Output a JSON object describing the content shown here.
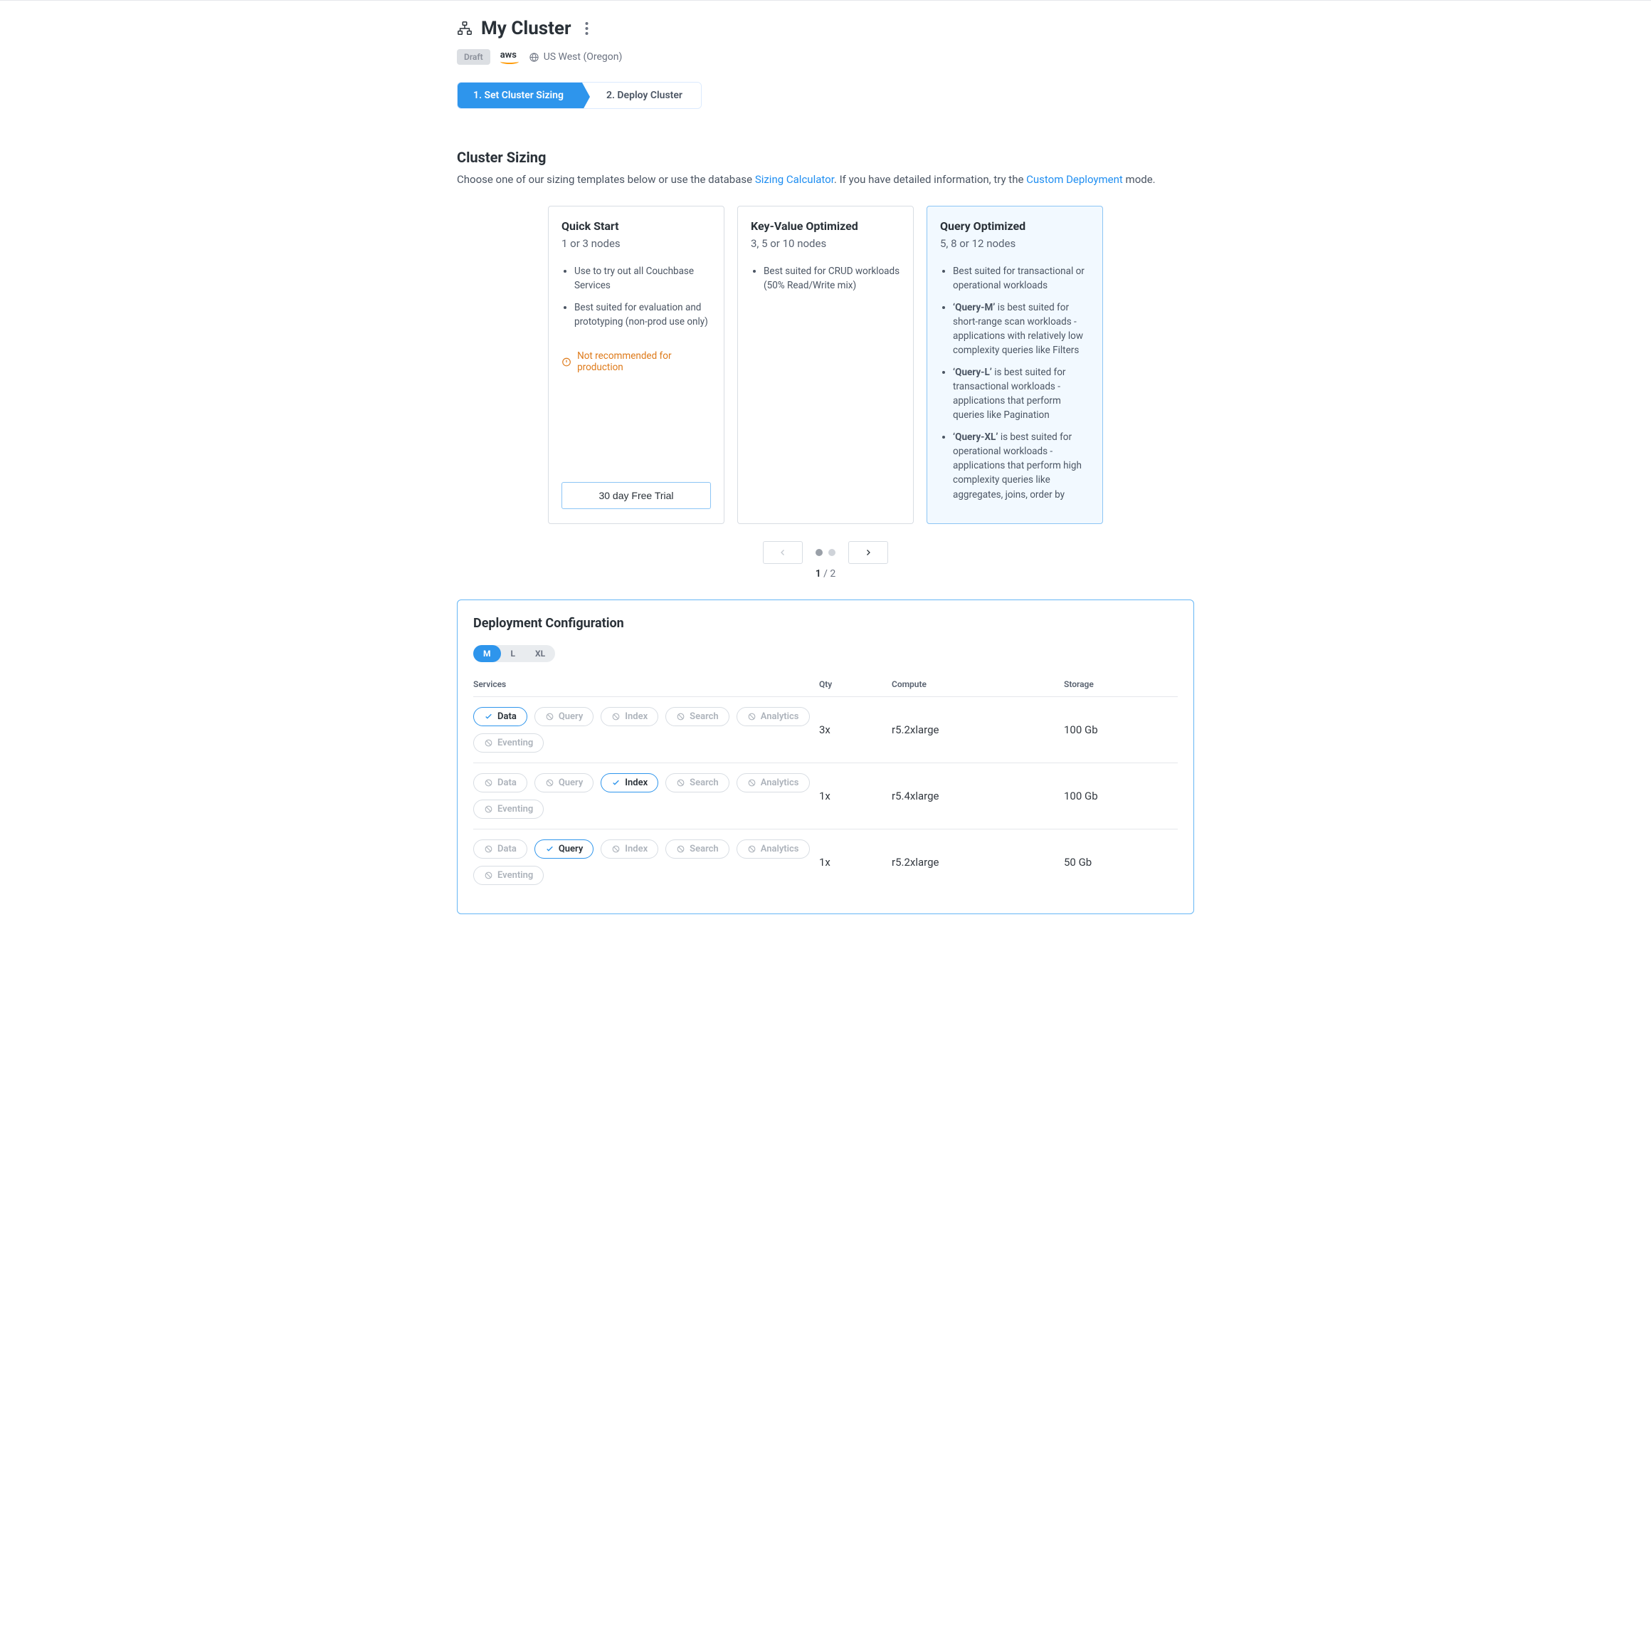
{
  "header": {
    "title": "My Cluster",
    "draft_label": "Draft",
    "provider": "aws",
    "region": "US West (Oregon)"
  },
  "stepper": {
    "steps": [
      {
        "label": "1. Set Cluster Sizing",
        "active": true
      },
      {
        "label": "2. Deploy Cluster",
        "active": false
      }
    ]
  },
  "sizing": {
    "title": "Cluster Sizing",
    "subtitle_pre": "Choose one of our sizing templates below or use the database ",
    "link1": "Sizing Calculator",
    "subtitle_mid": ". If you have detailed information, try the ",
    "link2": "Custom Deployment",
    "subtitle_post": " mode."
  },
  "cards": [
    {
      "title": "Quick Start",
      "nodes": "1 or 3 nodes",
      "bullets": [
        "Use to try out all Couchbase Services",
        "Best suited for evaluation and prototyping (non-prod use only)"
      ],
      "warn": "Not recommended for production",
      "trial_label": "30 day Free Trial",
      "selected": false
    },
    {
      "title": "Key-Value Optimized",
      "nodes": "3, 5 or 10 nodes",
      "bullets": [
        "Best suited for CRUD workloads (50% Read/Write mix)"
      ],
      "selected": false
    },
    {
      "title": "Query Optimized",
      "nodes": "5, 8 or 12 nodes",
      "bullets_rich": [
        {
          "plain": "Best suited for transactional or operational workloads"
        },
        {
          "bold": "‘Query-M’",
          "rest": " is best suited for short-range scan workloads - applications with relatively low complexity queries like Filters"
        },
        {
          "bold": "‘Query-L’",
          "rest": " is best suited for transactional workloads - applications that perform queries like Pagination"
        },
        {
          "bold": "‘Query-XL’",
          "rest": " is best suited for operational workloads - applications that perform high complexity queries like aggregates, joins, order by"
        }
      ],
      "selected": true
    }
  ],
  "pager": {
    "page": "1",
    "sep": " / ",
    "total": "2"
  },
  "config": {
    "title": "Deployment Configuration",
    "sizes": [
      {
        "label": "M",
        "active": true
      },
      {
        "label": "L",
        "active": false
      },
      {
        "label": "XL",
        "active": false
      }
    ],
    "columns": {
      "services": "Services",
      "qty": "Qty",
      "compute": "Compute",
      "storage": "Storage"
    },
    "service_labels": {
      "data": "Data",
      "query": "Query",
      "index": "Index",
      "search": "Search",
      "analytics": "Analytics",
      "eventing": "Eventing"
    },
    "rows": [
      {
        "active": "data",
        "qty": "3x",
        "compute": "r5.2xlarge",
        "storage": "100 Gb"
      },
      {
        "active": "index",
        "qty": "1x",
        "compute": "r5.4xlarge",
        "storage": "100 Gb"
      },
      {
        "active": "query",
        "qty": "1x",
        "compute": "r5.2xlarge",
        "storage": "50 Gb"
      }
    ]
  }
}
